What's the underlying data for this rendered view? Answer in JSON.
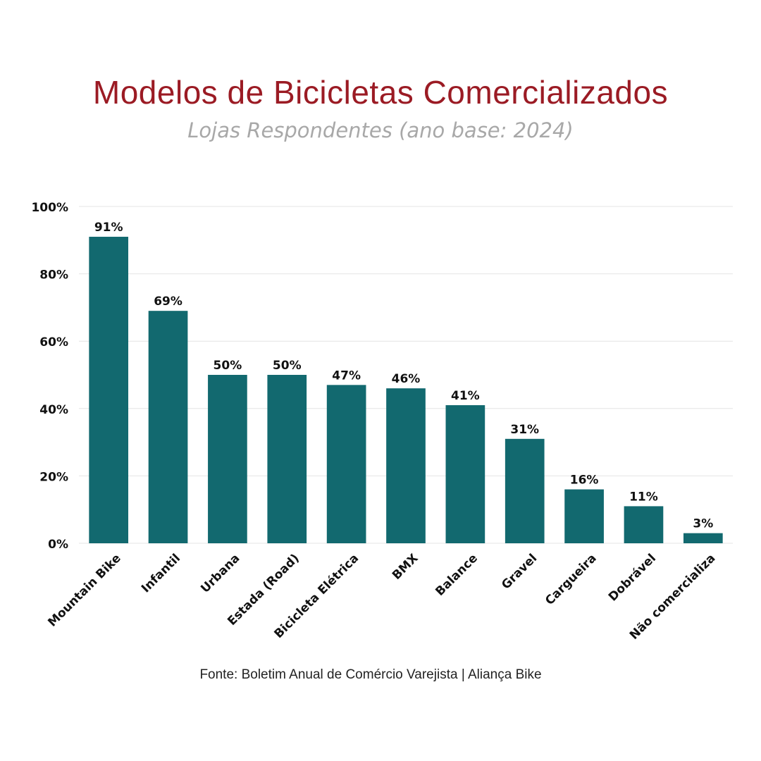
{
  "header": {
    "title": "Modelos de Bicicletas Comercializados",
    "subtitle": "Lojas Respondentes (ano base: 2024)"
  },
  "footer": {
    "source": "Fonte: Boletim Anual de Comércio Varejista | Aliança Bike"
  },
  "chart_data": {
    "type": "bar",
    "title": "Modelos de Bicicletas Comercializados",
    "subtitle": "Lojas Respondentes (ano base: 2024)",
    "xlabel": "",
    "ylabel": "",
    "categories": [
      "Mountain Bike",
      "Infantil",
      "Urbana",
      "Estada (Road)",
      "Bicicleta Elétrica",
      "BMX",
      "Balance",
      "Gravel",
      "Cargueira",
      "Dobrável",
      "Não comercializa"
    ],
    "values": [
      91,
      69,
      50,
      50,
      47,
      46,
      41,
      31,
      16,
      11,
      3
    ],
    "value_labels": [
      "91%",
      "69%",
      "50%",
      "50%",
      "47%",
      "46%",
      "41%",
      "31%",
      "16%",
      "11%",
      "3%"
    ],
    "ylim": [
      0,
      100
    ],
    "yticks": [
      0,
      20,
      40,
      60,
      80,
      100
    ],
    "ytick_labels": [
      "0%",
      "20%",
      "40%",
      "60%",
      "80%",
      "100%"
    ],
    "grid": true,
    "bar_color": "#12696f",
    "title_color": "#9b1b24",
    "subtitle_color": "#a8a8a8"
  }
}
